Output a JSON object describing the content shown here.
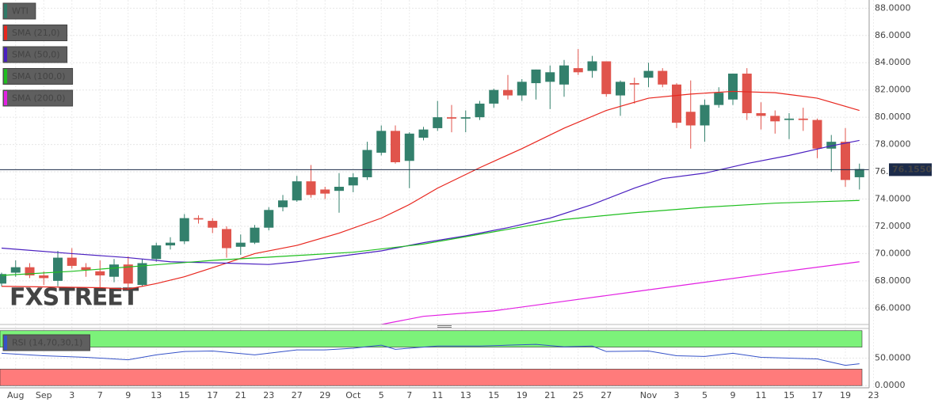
{
  "chart_data": [
    {
      "type": "candlestick",
      "watermark": [
        "FX",
        "STREET"
      ],
      "categories": [
        null,
        "Aug",
        null,
        "Sep",
        null,
        "3",
        null,
        "7",
        null,
        "9",
        null,
        "13",
        null,
        "15",
        null,
        "17",
        null,
        "21",
        null,
        "23",
        null,
        "27",
        null,
        "29",
        null,
        "Oct",
        null,
        "5",
        null,
        "7",
        null,
        "11",
        null,
        "13",
        null,
        "15",
        null,
        "19",
        null,
        "21",
        null,
        "25",
        null,
        "27",
        null,
        null,
        "Nov",
        null,
        "3",
        null,
        "5",
        null,
        "9",
        null,
        "11",
        null,
        "15",
        null,
        "17",
        null,
        "19",
        null,
        "23"
      ],
      "ylim": [
        64.8,
        88.6
      ],
      "yticks": [
        {
          "value": 66,
          "label": "66.0000"
        },
        {
          "value": 68,
          "label": "68.0000"
        },
        {
          "value": 70,
          "label": "70.0000"
        },
        {
          "value": 72,
          "label": "72.0000"
        },
        {
          "value": 74,
          "label": "74.0000"
        },
        {
          "value": 76,
          "label": "76.0000"
        },
        {
          "value": 78,
          "label": "78.0000"
        },
        {
          "value": 80,
          "label": "80.0000"
        },
        {
          "value": 82,
          "label": "82.0000"
        },
        {
          "value": 84,
          "label": "84.0000"
        },
        {
          "value": 86,
          "label": "86.0000"
        },
        {
          "value": 88,
          "label": "88.0000"
        }
      ],
      "grid": true,
      "last_price": {
        "value": 76.155,
        "label": "76.1550",
        "color": "#1c2b4a"
      },
      "series": [
        {
          "name": "WTI",
          "type": "candlestick",
          "color": "#2f7a68",
          "color_up": "#33806c",
          "color_down": "#e0544c",
          "open": [
            67.8,
            68.6,
            69.0,
            68.4,
            68.0,
            69.7,
            69.0,
            68.7,
            68.3,
            69.2,
            67.7,
            69.6,
            70.6,
            70.9,
            72.6,
            72.4,
            71.8,
            70.5,
            70.8,
            71.9,
            73.4,
            73.9,
            75.3,
            74.7,
            74.6,
            75.0,
            75.6,
            77.4,
            79.0,
            76.8,
            78.5,
            79.2,
            80.0,
            79.9,
            80.0,
            81.0,
            82.0,
            81.6,
            82.5,
            82.6,
            82.4,
            83.6,
            83.4,
            84.1,
            81.6,
            82.5,
            82.9,
            83.4,
            82.4,
            80.4,
            79.4,
            80.9,
            81.3,
            83.2,
            80.3,
            80.1,
            79.8,
            79.9,
            79.8,
            77.7,
            78.2,
            75.6,
            null
          ],
          "high": [
            68.6,
            69.5,
            69.3,
            68.7,
            70.2,
            70.4,
            69.3,
            69.5,
            69.6,
            69.8,
            69.6,
            70.8,
            71.2,
            72.9,
            72.8,
            72.6,
            72.0,
            71.4,
            72.1,
            73.4,
            74.3,
            75.7,
            76.5,
            74.9,
            75.9,
            75.9,
            78.2,
            79.4,
            79.4,
            78.9,
            79.3,
            81.2,
            80.9,
            80.5,
            81.2,
            82.1,
            83.1,
            82.8,
            83.5,
            83.8,
            84.2,
            85.0,
            84.5,
            84.1,
            82.7,
            82.9,
            84.0,
            83.6,
            82.5,
            82.7,
            81.3,
            82.2,
            83.2,
            83.6,
            81.1,
            80.5,
            80.3,
            80.7,
            79.9,
            78.7,
            79.2,
            76.6,
            null
          ],
          "low": [
            67.6,
            68.3,
            68.2,
            67.7,
            67.6,
            68.9,
            68.3,
            67.5,
            67.9,
            67.4,
            67.6,
            69.4,
            70.3,
            70.7,
            72.2,
            71.5,
            69.7,
            69.9,
            70.7,
            71.7,
            73.1,
            73.8,
            74.1,
            74.0,
            73.0,
            74.5,
            75.4,
            77.2,
            76.6,
            74.8,
            78.3,
            79.0,
            78.9,
            78.9,
            79.8,
            80.7,
            81.3,
            81.2,
            81.3,
            80.6,
            81.5,
            83.1,
            82.9,
            81.5,
            80.1,
            81.0,
            82.2,
            82.2,
            79.2,
            77.7,
            78.2,
            80.7,
            80.9,
            79.8,
            79.1,
            78.8,
            78.4,
            79.0,
            77.0,
            76.0,
            74.9,
            74.7,
            null
          ],
          "close": [
            68.5,
            69.0,
            68.4,
            68.2,
            69.7,
            69.1,
            68.8,
            68.4,
            69.2,
            67.8,
            69.3,
            70.6,
            70.8,
            72.6,
            72.5,
            71.9,
            70.4,
            70.8,
            71.9,
            73.2,
            73.9,
            75.3,
            74.3,
            74.4,
            74.9,
            75.6,
            77.6,
            79.0,
            76.7,
            78.8,
            79.1,
            80.0,
            79.9,
            80.0,
            81.0,
            82.0,
            81.6,
            82.6,
            83.5,
            83.3,
            83.8,
            83.3,
            84.1,
            81.7,
            82.6,
            82.4,
            83.4,
            82.4,
            79.6,
            79.4,
            80.9,
            81.8,
            83.2,
            80.3,
            80.1,
            79.7,
            79.9,
            79.8,
            77.7,
            78.2,
            75.4,
            76.2,
            null
          ]
        },
        {
          "name": "SMA (21,0)",
          "type": "line",
          "color": "#e8261e",
          "x": [
            0,
            7,
            9,
            11,
            13,
            16,
            18,
            21,
            24,
            27,
            29,
            31,
            34,
            37,
            40,
            43,
            46,
            49,
            52,
            55,
            58,
            61
          ],
          "values": [
            67.6,
            67.5,
            67.4,
            67.8,
            68.3,
            69.3,
            70.0,
            70.6,
            71.5,
            72.6,
            73.6,
            74.8,
            76.3,
            77.7,
            79.2,
            80.5,
            81.4,
            81.7,
            81.9,
            81.8,
            81.4,
            80.5
          ]
        },
        {
          "name": "SMA (50,0)",
          "type": "line",
          "color": "#4a1fc0",
          "x": [
            0,
            5,
            9,
            12,
            16,
            19,
            21,
            24,
            27,
            30,
            33,
            36,
            39,
            42,
            45,
            47,
            50,
            53,
            56,
            59,
            61
          ],
          "values": [
            70.4,
            70.0,
            69.7,
            69.4,
            69.3,
            69.2,
            69.4,
            69.8,
            70.2,
            70.8,
            71.3,
            71.9,
            72.6,
            73.6,
            74.8,
            75.5,
            75.9,
            76.6,
            77.2,
            77.9,
            78.3
          ]
        },
        {
          "name": "SMA (100,0)",
          "type": "line",
          "color": "#1fbf1f",
          "x": [
            0,
            5,
            10,
            15,
            20,
            25,
            30,
            35,
            40,
            45,
            50,
            55,
            61
          ],
          "values": [
            68.4,
            68.7,
            69.1,
            69.5,
            69.8,
            70.1,
            70.7,
            71.6,
            72.5,
            73.0,
            73.4,
            73.7,
            73.9
          ]
        },
        {
          "name": "SMA (200,0)",
          "type": "line",
          "color": "#e21fe2",
          "x": [
            27,
            30,
            35,
            40,
            45,
            50,
            55,
            61
          ],
          "values": [
            64.8,
            65.4,
            65.8,
            66.5,
            67.2,
            67.9,
            68.6,
            69.4
          ]
        }
      ]
    },
    {
      "type": "line",
      "ylim": [
        -4,
        104
      ],
      "yticks": [
        {
          "value": 0,
          "label": "0.0000"
        },
        {
          "value": 50,
          "label": "50.0000"
        }
      ],
      "bands": [
        {
          "from": 70,
          "to": 100,
          "color": "#7cf27a"
        },
        {
          "from": 0,
          "to": 30,
          "color": "#ff7b7b"
        }
      ],
      "series": [
        {
          "name": "RSI (14,70,30,1)",
          "color": "#3552c8",
          "x": [
            0,
            3,
            6,
            9,
            11,
            13,
            15,
            18,
            21,
            23,
            25,
            27,
            28,
            31,
            34,
            36,
            38,
            40,
            42,
            43,
            46,
            48,
            50,
            52,
            54,
            58,
            59,
            60,
            61
          ],
          "values": [
            58.8,
            54.4,
            51.5,
            47,
            56,
            62,
            63,
            56,
            65,
            65,
            68,
            73.5,
            66,
            72,
            72,
            73.5,
            75,
            70.6,
            72,
            62,
            63,
            54.4,
            53,
            58.8,
            51.5,
            48.5,
            42.6,
            36.8,
            39.7
          ]
        }
      ]
    }
  ]
}
